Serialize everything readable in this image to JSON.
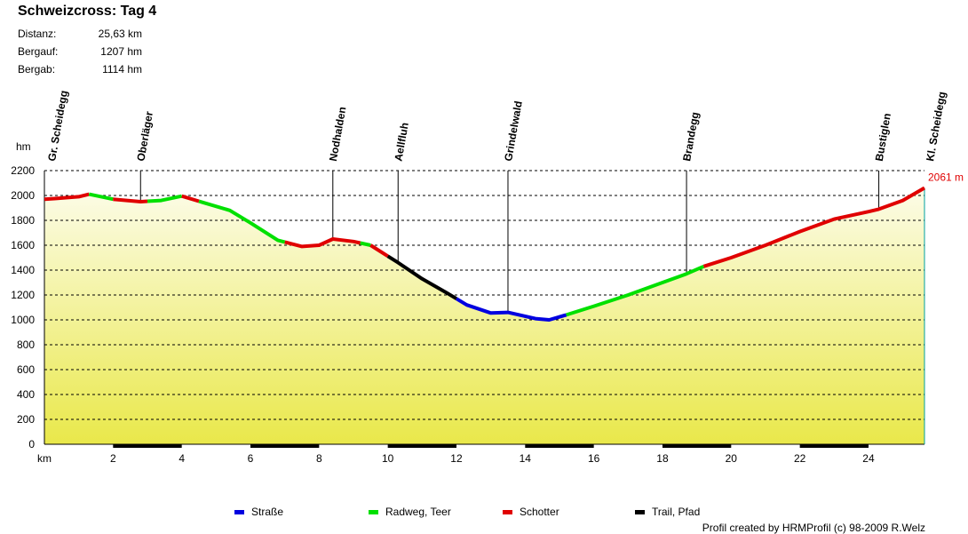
{
  "title": "Schweizcross: Tag 4",
  "stats": [
    {
      "label": "Distanz:",
      "value": "25,63 km"
    },
    {
      "label": "Bergauf:",
      "value": "1207 hm"
    },
    {
      "label": "Bergab:",
      "value": "1114 hm"
    }
  ],
  "credit": "Profil created by HRMProfil (c) 98-2009 R.Welz",
  "chart_data": {
    "type": "area",
    "xlabel": "km",
    "ylabel": "hm",
    "xlim": [
      0,
      25.63
    ],
    "ylim": [
      0,
      2200
    ],
    "x_ticks": [
      2,
      4,
      6,
      8,
      10,
      12,
      14,
      16,
      18,
      20,
      22,
      24
    ],
    "y_ticks": [
      0,
      200,
      400,
      600,
      800,
      1000,
      1200,
      1400,
      1600,
      1800,
      2000,
      2200
    ],
    "grid": true,
    "end_label": "2061 m",
    "end_label_color": "#e00000",
    "colors": {
      "Straße": "#0000e0",
      "Radweg, Teer": "#00e000",
      "Schotter": "#e00000",
      "Trail, Pfad": "#000000"
    },
    "legend": [
      "Straße",
      "Radweg, Teer",
      "Schotter",
      "Trail, Pfad"
    ],
    "legend_position": "bottom",
    "waypoints": [
      {
        "name": "Gr. Scheidegg",
        "km": 0
      },
      {
        "name": "Oberläger",
        "km": 2.8
      },
      {
        "name": "Nodhalden",
        "km": 8.4
      },
      {
        "name": "Aellfluh",
        "km": 10.3
      },
      {
        "name": "Grindelwald",
        "km": 13.5
      },
      {
        "name": "Brandegg",
        "km": 18.7
      },
      {
        "name": "Bustiglen",
        "km": 24.3
      },
      {
        "name": "Kl. Scheidegg",
        "km": 25.63
      }
    ],
    "profile": [
      [
        0,
        1970
      ],
      [
        0.3,
        1975
      ],
      [
        1.0,
        1990
      ],
      [
        1.3,
        2010
      ],
      [
        2.0,
        1970
      ],
      [
        2.8,
        1950
      ],
      [
        3.4,
        1960
      ],
      [
        4.0,
        1995
      ],
      [
        4.6,
        1945
      ],
      [
        5.4,
        1880
      ],
      [
        6.0,
        1780
      ],
      [
        6.8,
        1640
      ],
      [
        7.5,
        1590
      ],
      [
        8.0,
        1600
      ],
      [
        8.4,
        1650
      ],
      [
        9.0,
        1630
      ],
      [
        9.5,
        1600
      ],
      [
        10.3,
        1460
      ],
      [
        11.0,
        1330
      ],
      [
        11.7,
        1220
      ],
      [
        12.3,
        1120
      ],
      [
        13.0,
        1055
      ],
      [
        13.5,
        1060
      ],
      [
        14.3,
        1010
      ],
      [
        14.7,
        1000
      ],
      [
        15.2,
        1040
      ],
      [
        16.0,
        1110
      ],
      [
        17.0,
        1200
      ],
      [
        18.0,
        1300
      ],
      [
        18.7,
        1370
      ],
      [
        19.2,
        1430
      ],
      [
        20.0,
        1500
      ],
      [
        21.0,
        1600
      ],
      [
        22.0,
        1710
      ],
      [
        23.0,
        1810
      ],
      [
        24.0,
        1870
      ],
      [
        24.3,
        1890
      ],
      [
        25.0,
        1960
      ],
      [
        25.63,
        2061
      ]
    ],
    "surfaces": [
      {
        "from": 0,
        "to": 1.3,
        "type": "Schotter"
      },
      {
        "from": 1.3,
        "to": 2.0,
        "type": "Radweg, Teer"
      },
      {
        "from": 2.0,
        "to": 3.0,
        "type": "Schotter"
      },
      {
        "from": 3.0,
        "to": 4.0,
        "type": "Radweg, Teer"
      },
      {
        "from": 4.0,
        "to": 4.5,
        "type": "Schotter"
      },
      {
        "from": 4.5,
        "to": 7.0,
        "type": "Radweg, Teer"
      },
      {
        "from": 7.0,
        "to": 9.2,
        "type": "Schotter"
      },
      {
        "from": 9.2,
        "to": 9.5,
        "type": "Radweg, Teer"
      },
      {
        "from": 9.5,
        "to": 10.0,
        "type": "Schotter"
      },
      {
        "from": 10.0,
        "to": 12.0,
        "type": "Trail, Pfad"
      },
      {
        "from": 12.0,
        "to": 15.2,
        "type": "Straße"
      },
      {
        "from": 15.2,
        "to": 19.2,
        "type": "Radweg, Teer"
      },
      {
        "from": 19.2,
        "to": 25.63,
        "type": "Schotter"
      }
    ]
  }
}
